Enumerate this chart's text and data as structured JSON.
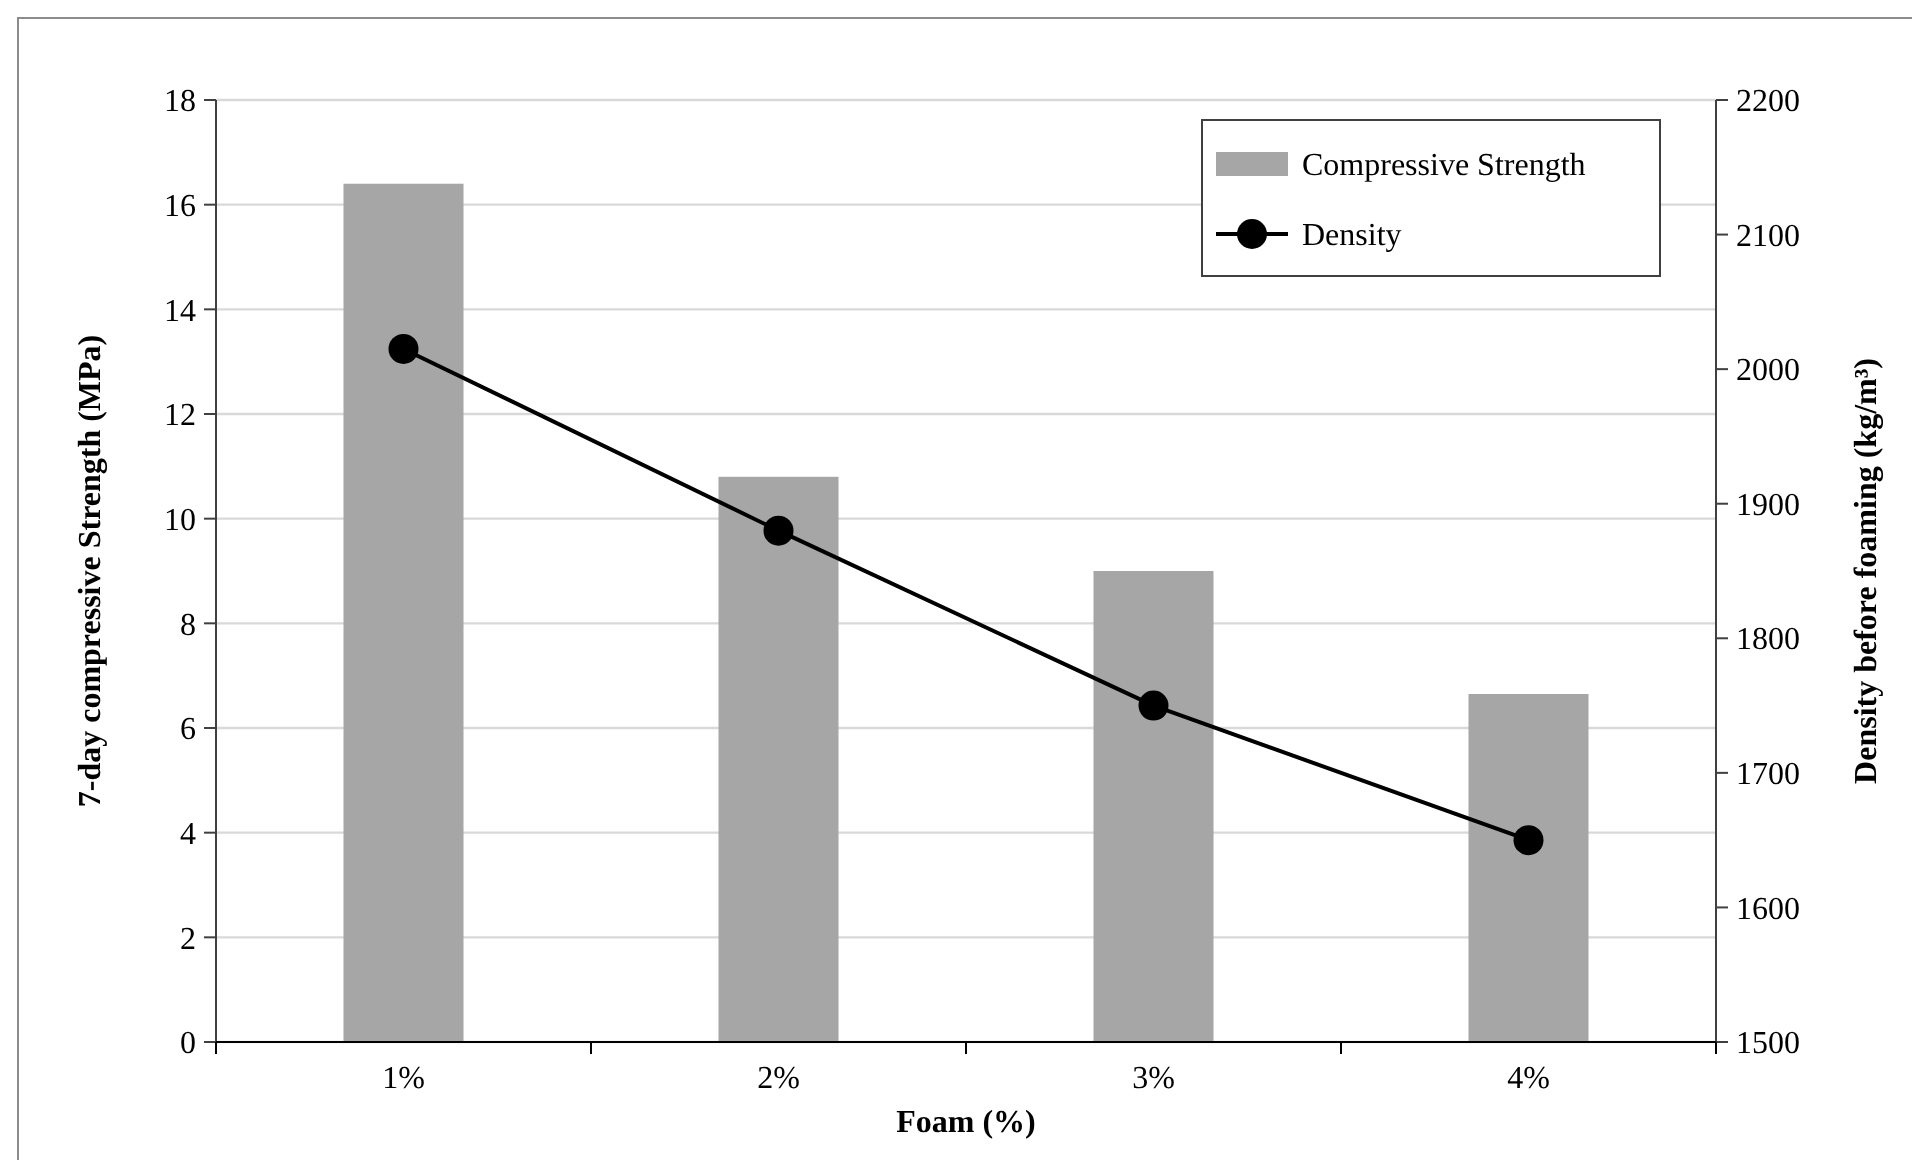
{
  "chart_data": {
    "type": "bar",
    "xlabel": "Foam (%)",
    "ylabel": "7-day compressive Strength (MPa)",
    "y2label": "Density before foaming (kg/m³)",
    "categories": [
      "1%",
      "2%",
      "3%",
      "4%"
    ],
    "series": [
      {
        "name": "Compressive Strength",
        "color": "#a6a6a6",
        "values": [
          16.4,
          10.8,
          9.0,
          6.65
        ]
      },
      {
        "name": "Density",
        "type": "line",
        "axis": "y2",
        "color": "#000000",
        "values": [
          2015,
          1880,
          1750,
          1650
        ],
        "marker": "circle",
        "line_style": "solid"
      }
    ],
    "ylim": [
      0,
      18
    ],
    "yticks": [
      0,
      2,
      4,
      6,
      8,
      10,
      12,
      14,
      16,
      18
    ],
    "y2lim": [
      1500,
      2200
    ],
    "y2ticks": [
      1500,
      1600,
      1700,
      1800,
      1900,
      2000,
      2100,
      2200
    ],
    "grid": "y",
    "legend": "top right"
  }
}
